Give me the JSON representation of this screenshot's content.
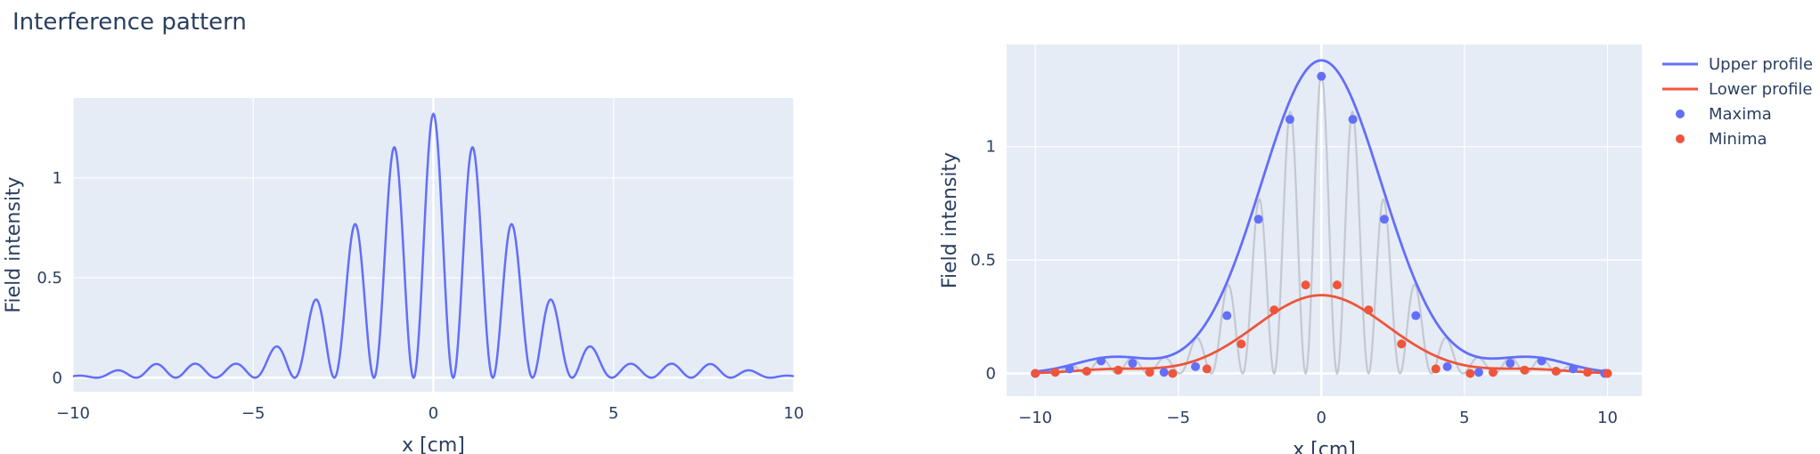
{
  "figure": {
    "title": "Interference pattern"
  },
  "chart_data": [
    {
      "type": "line",
      "xlabel": "x [cm]",
      "ylabel": "Field intensity",
      "xlim": [
        -10,
        10
      ],
      "ylim": [
        -0.07,
        1.4
      ],
      "x_ticks": [
        -10,
        -5,
        0,
        5,
        10
      ],
      "x_tick_labels": [
        "−10",
        "−5",
        "0",
        "5",
        "10"
      ],
      "y_ticks": [
        0,
        0.5,
        1
      ],
      "y_tick_labels": [
        "0",
        "0.5",
        "1"
      ],
      "grid": true,
      "legend": "none",
      "series": [
        {
          "color": "#636efa",
          "model": {
            "envelope": "gaussian",
            "amp": 0.66,
            "sigma": 2.1,
            "fringe_period": 1.1,
            "side_lobe_amp": 0.035,
            "side_lobe_center": 7.3,
            "side_lobe_sigma": 1.3
          },
          "x": [
            -10,
            -8.8,
            -7.7,
            -6.6,
            -5.5,
            -4.4,
            -3.3,
            -2.75,
            -2.2,
            -1.65,
            -1.1,
            -0.55,
            0,
            0.55,
            1.1,
            1.65,
            2.2,
            2.75,
            3.3,
            4.4,
            5.5,
            6.6,
            7.7,
            8.8,
            10
          ],
          "y": [
            0.0,
            0.02,
            0.055,
            0.045,
            0.01,
            0.03,
            0.26,
            0.13,
            0.68,
            0.28,
            1.12,
            0.39,
            1.32,
            0.39,
            1.12,
            0.28,
            0.68,
            0.13,
            0.26,
            0.03,
            0.01,
            0.045,
            0.055,
            0.02,
            0.0
          ]
        }
      ]
    },
    {
      "type": "scatter",
      "xlabel": "x [cm]",
      "ylabel": "Field intensity",
      "xlim": [
        -11,
        11.2
      ],
      "ylim": [
        -0.1,
        1.45
      ],
      "x_ticks": [
        -10,
        -5,
        0,
        5,
        10
      ],
      "x_tick_labels": [
        "−10",
        "−5",
        "0",
        "5",
        "10"
      ],
      "y_ticks": [
        0,
        0.5,
        1
      ],
      "y_tick_labels": [
        "0",
        "0.5",
        "1"
      ],
      "grid": true,
      "legend": "top-right outside",
      "background_trace_color": "#c3c8d2",
      "series": [
        {
          "name": "Upper profile",
          "kind": "line",
          "color": "#636efa",
          "model": {
            "center_amp": 1.38,
            "sigma": 2.1,
            "side_lobe_amp": 0.07,
            "side_lobe_center": 7.3,
            "side_lobe_sigma": 1.3
          },
          "x": [
            -10,
            -7.3,
            -5,
            -2.1,
            0,
            2.1,
            5,
            7.3,
            10
          ],
          "y": [
            0.0,
            0.07,
            0.0,
            0.84,
            1.38,
            0.84,
            0.0,
            0.07,
            0.0
          ]
        },
        {
          "name": "Lower profile",
          "kind": "line",
          "color": "#ef553b",
          "model": {
            "center_amp": 0.345,
            "sigma": 2.3,
            "side_lobe_amp": 0.018,
            "side_lobe_center": 7.3,
            "side_lobe_sigma": 1.3
          },
          "x": [
            -10,
            -7.3,
            -5,
            -2.3,
            0,
            2.3,
            5,
            7.3,
            10
          ],
          "y": [
            0.0,
            0.018,
            0.0,
            0.21,
            0.345,
            0.21,
            0.0,
            0.018,
            0.0
          ]
        },
        {
          "name": "Maxima",
          "kind": "markers",
          "color": "#636efa",
          "x": [
            -10,
            -8.8,
            -7.7,
            -6.6,
            -5.5,
            -4.4,
            -3.3,
            -2.2,
            -1.1,
            0,
            1.1,
            2.2,
            3.3,
            4.4,
            5.5,
            6.6,
            7.7,
            8.8,
            9.9,
            10
          ],
          "y": [
            0.0,
            0.02,
            0.055,
            0.045,
            0.005,
            0.03,
            0.255,
            0.68,
            1.12,
            1.31,
            1.12,
            0.68,
            0.255,
            0.03,
            0.005,
            0.045,
            0.055,
            0.02,
            0.0,
            0.0
          ]
        },
        {
          "name": "Minima",
          "kind": "markers",
          "color": "#ef553b",
          "x": [
            -10,
            -9.3,
            -8.2,
            -7.1,
            -6.0,
            -5.2,
            -4.0,
            -2.8,
            -1.65,
            -0.55,
            0.55,
            1.65,
            2.8,
            4.0,
            5.2,
            6.0,
            7.1,
            8.2,
            9.3,
            10
          ],
          "y": [
            0.0,
            0.005,
            0.01,
            0.015,
            0.005,
            0.0,
            0.02,
            0.13,
            0.28,
            0.39,
            0.39,
            0.28,
            0.13,
            0.02,
            0.0,
            0.005,
            0.015,
            0.01,
            0.005,
            0.0
          ]
        }
      ]
    }
  ]
}
